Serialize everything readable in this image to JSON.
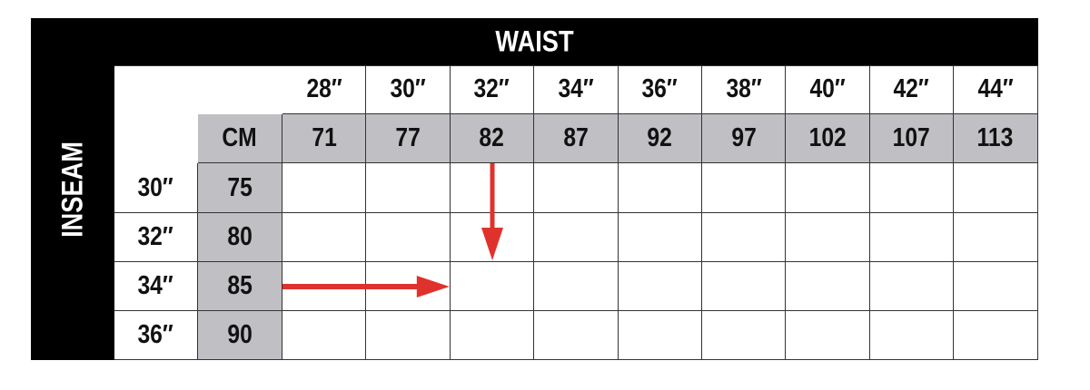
{
  "waist_title": "WAIST",
  "inseam_title": "INSEAM",
  "cm_label": "CM",
  "waist_inches": [
    "28″",
    "30″",
    "32″",
    "34″",
    "36″",
    "38″",
    "40″",
    "42″",
    "44″"
  ],
  "waist_cm": [
    "71",
    "77",
    "82",
    "87",
    "92",
    "97",
    "102",
    "107",
    "113"
  ],
  "inseam_inches": [
    "30″",
    "32″",
    "34″",
    "36″"
  ],
  "inseam_cm": [
    "75",
    "80",
    "85",
    "90"
  ],
  "highlight": {
    "waist": "32″",
    "inseam": "34″"
  },
  "colors": {
    "header": "#000000",
    "cm_band": "#c0bfc3",
    "arrow": "#e0322d"
  }
}
